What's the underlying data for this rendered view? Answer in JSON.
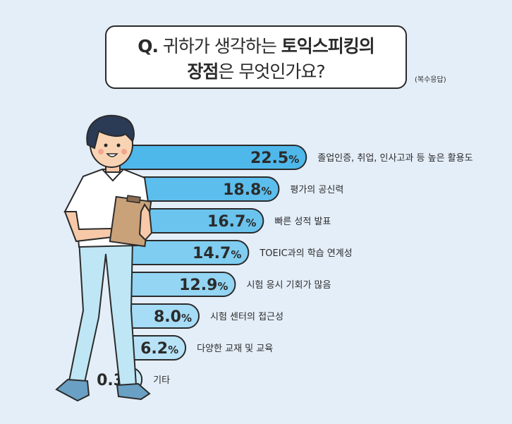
{
  "title": {
    "q": "Q.",
    "line1_plain": " 귀하가 생각하는 ",
    "line1_bold": "토익스피킹의",
    "line2_bold": "장점",
    "line2_plain": "은 무엇인가요?"
  },
  "note": "(복수응답)",
  "colors": {
    "bar_fills": [
      "#4fb8ea",
      "#5cbeed",
      "#6ac4ee",
      "#7fcdf1",
      "#93d5f3",
      "#a6dcf5",
      "#b8e3f7",
      "#c9eaf9"
    ],
    "bar_stroke": "#2b2b2b",
    "background": "#e4eef8"
  },
  "chart_data": {
    "type": "bar",
    "orientation": "horizontal",
    "unit": "%",
    "categories": [
      "졸업인증, 취업, 인사고과 등 높은 활용도",
      "평가의 공신력",
      "빠른 성적 발표",
      "TOEIC과의 학습 연계성",
      "시험 응시 기회가 많음",
      "시험 센터의 접근성",
      "다양한 교재 및 교육",
      "기타"
    ],
    "values": [
      22.5,
      18.8,
      16.7,
      14.7,
      12.9,
      8.0,
      6.2,
      0.3
    ],
    "value_labels": [
      "22.5",
      "18.8",
      "16.7",
      "14.7",
      "12.9",
      "8.0",
      "6.2",
      "0.3"
    ]
  }
}
